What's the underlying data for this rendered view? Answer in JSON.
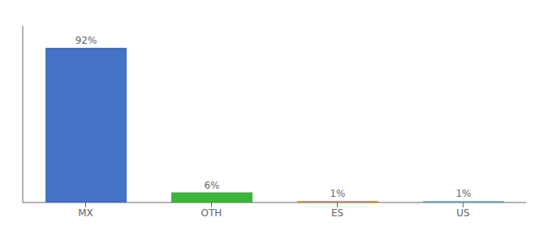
{
  "chart_data": {
    "type": "bar",
    "categories": [
      "MX",
      "OTH",
      "ES",
      "US"
    ],
    "values": [
      92,
      6,
      1,
      1
    ],
    "value_labels": [
      "92%",
      "6%",
      "1%",
      "1%"
    ],
    "colors": [
      "#4472c4",
      "#3db53d",
      "#f5a623",
      "#7ec8e8"
    ],
    "ylim": [
      0,
      105
    ],
    "grid": false,
    "data_labels": true,
    "tick_labels": "x"
  }
}
